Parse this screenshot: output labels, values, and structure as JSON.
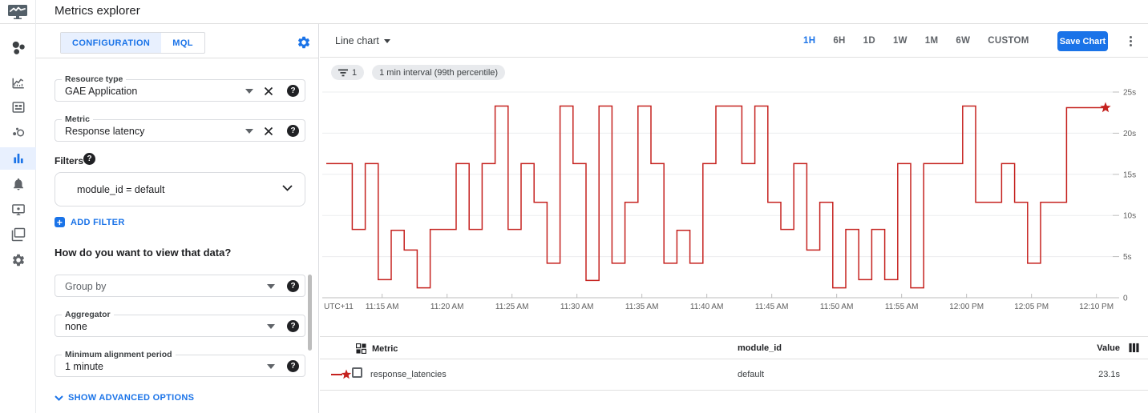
{
  "header": {
    "title": "Metrics explorer",
    "logo_icon": "monitoring-logo-icon"
  },
  "nav": {
    "items": [
      {
        "icon": "overview-icon",
        "active": false
      },
      {
        "icon": "dashboards-icon",
        "active": false
      },
      {
        "icon": "integrations-icon",
        "active": false
      },
      {
        "icon": "services-icon",
        "active": false
      },
      {
        "icon": "metrics-explorer-icon",
        "active": true
      },
      {
        "icon": "alerting-icon",
        "active": false
      },
      {
        "icon": "uptime-checks-icon",
        "active": false
      },
      {
        "icon": "groups-icon",
        "active": false
      },
      {
        "icon": "settings-icon",
        "active": false
      }
    ]
  },
  "config_panel": {
    "tabs": [
      {
        "label": "CONFIGURATION",
        "active": true
      },
      {
        "label": "MQL",
        "active": false
      }
    ],
    "gear_icon": "settings-gear-icon",
    "resource_type": {
      "label": "Resource type",
      "value": "GAE Application"
    },
    "metric": {
      "label": "Metric",
      "value": "Response latency"
    },
    "filters_label": "Filters",
    "filter_value": "module_id = default",
    "add_filter_label": "ADD FILTER",
    "add_filter_plus": "+",
    "view_question": "How do you want to view that data?",
    "group_by": {
      "placeholder": "Group by"
    },
    "aggregator": {
      "label": "Aggregator",
      "value": "none"
    },
    "min_alignment": {
      "label": "Minimum alignment period",
      "value": "1 minute"
    },
    "show_advanced_label": "SHOW ADVANCED OPTIONS",
    "help_glyph": "?"
  },
  "toolbar": {
    "chart_type_label": "Line chart",
    "time_ranges": [
      "1H",
      "6H",
      "1D",
      "1W",
      "1M",
      "6W",
      "CUSTOM"
    ],
    "active_range": "1H",
    "save_label": "Save Chart"
  },
  "chips": {
    "filter_count": "1",
    "interval_label": "1 min interval (99th percentile)"
  },
  "chart_data": {
    "type": "line",
    "subtype": "step",
    "title": "",
    "xlabel": "",
    "ylabel": "",
    "utc_label": "UTC+11",
    "x_start_label": "11:11 AM",
    "interval_minutes": 1,
    "xlim_minutes": [
      0,
      60
    ],
    "ylim": [
      0,
      26
    ],
    "grid": true,
    "line_color": "#c5221f",
    "endpoint_marker": "star",
    "x_tick_minutes": [
      4.3,
      9.3,
      14.3,
      19.3,
      24.3,
      29.3,
      34.3,
      39.3,
      44.3,
      49.3,
      54.3,
      59.3
    ],
    "x_tick_labels": [
      "11:15 AM",
      "11:20 AM",
      "11:25 AM",
      "11:30 AM",
      "11:35 AM",
      "11:40 AM",
      "11:45 AM",
      "11:50 AM",
      "11:55 AM",
      "12:00 PM",
      "12:05 PM",
      "12:10 PM"
    ],
    "y_ticks": [
      {
        "v": 0,
        "label": "0"
      },
      {
        "v": 5,
        "label": "5s"
      },
      {
        "v": 10,
        "label": "10s"
      },
      {
        "v": 15,
        "label": "15s"
      },
      {
        "v": 20,
        "label": "20s"
      },
      {
        "v": 25,
        "label": "25s"
      }
    ],
    "series": [
      {
        "name": "response_latencies",
        "color": "#c5221f",
        "values": [
          16.3,
          16.3,
          8.3,
          16.3,
          2.2,
          8.2,
          5.8,
          1.2,
          8.3,
          8.3,
          16.3,
          8.3,
          16.3,
          23.3,
          8.3,
          16.3,
          11.6,
          4.2,
          23.3,
          16.3,
          2.1,
          23.3,
          4.2,
          11.6,
          23.3,
          16.3,
          4.2,
          8.2,
          4.2,
          16.3,
          23.3,
          23.3,
          16.3,
          23.3,
          11.6,
          8.3,
          16.3,
          5.8,
          11.6,
          1.2,
          8.3,
          2.2,
          8.3,
          2.2,
          16.3,
          1.2,
          16.3,
          16.3,
          16.3,
          23.3,
          11.6,
          11.6,
          16.3,
          11.6,
          4.2,
          11.6,
          11.6,
          23.1,
          23.1,
          23.1
        ]
      }
    ]
  },
  "table": {
    "metric_header": "Metric",
    "module_header": "module_id",
    "value_header": "Value",
    "rows": [
      {
        "metric": "response_latencies",
        "module_id": "default",
        "value": "23.1s"
      }
    ]
  }
}
